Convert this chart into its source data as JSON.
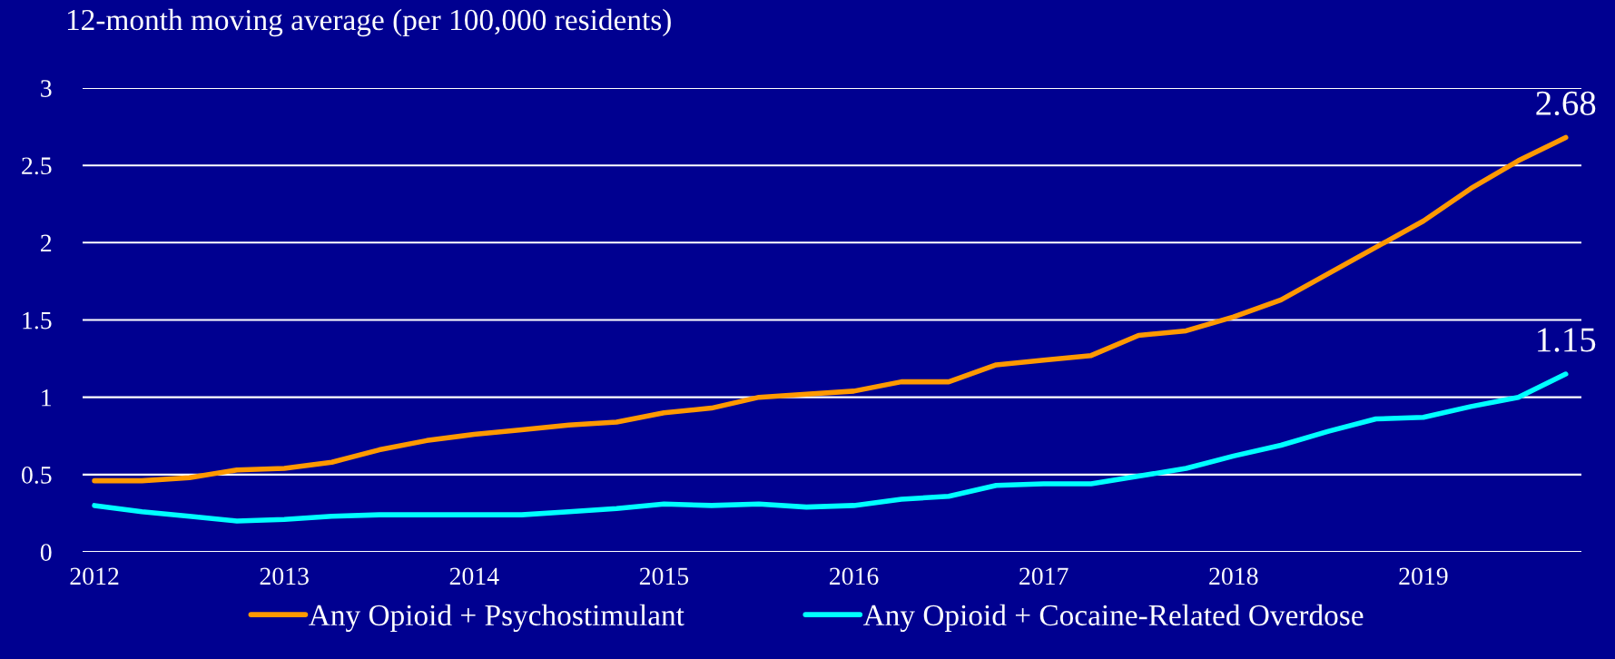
{
  "chart_data": {
    "type": "line",
    "ylabel": "12-month moving average (per 100,000 residents)",
    "categories": [
      "2012",
      null,
      null,
      null,
      "2013",
      null,
      null,
      null,
      "2014",
      null,
      null,
      null,
      "2015",
      null,
      null,
      null,
      "2016",
      null,
      null,
      null,
      "2017",
      null,
      null,
      null,
      "2018",
      null,
      null,
      null,
      "2019",
      null,
      null,
      null
    ],
    "series": [
      {
        "name": "Any Opioid + Psychostimulant",
        "color": "#ff9900",
        "values": [
          0.46,
          0.46,
          0.48,
          0.53,
          0.54,
          0.58,
          0.66,
          0.72,
          0.76,
          0.79,
          0.82,
          0.84,
          0.9,
          0.93,
          1.0,
          1.02,
          1.04,
          1.1,
          1.1,
          1.21,
          1.24,
          1.27,
          1.4,
          1.43,
          1.52,
          1.63,
          1.8,
          1.97,
          2.14,
          2.35,
          2.53,
          2.68
        ],
        "value_labels": [
          null,
          null,
          null,
          null,
          null,
          null,
          null,
          null,
          null,
          null,
          null,
          null,
          null,
          null,
          null,
          null,
          null,
          null,
          null,
          null,
          null,
          null,
          null,
          null,
          null,
          null,
          null,
          null,
          null,
          null,
          null,
          "2.68"
        ]
      },
      {
        "name": "Any Opioid + Cocaine-Related Overdose",
        "color": "#00ffff",
        "values": [
          0.3,
          0.26,
          0.23,
          0.2,
          0.21,
          0.23,
          0.24,
          0.24,
          0.24,
          0.24,
          0.26,
          0.28,
          0.31,
          0.3,
          0.31,
          0.29,
          0.3,
          0.34,
          0.36,
          0.43,
          0.44,
          0.44,
          0.49,
          0.54,
          0.62,
          0.69,
          0.78,
          0.86,
          0.87,
          0.94,
          1.0,
          1.15
        ],
        "value_labels": [
          null,
          null,
          null,
          null,
          null,
          null,
          null,
          null,
          null,
          null,
          null,
          null,
          null,
          null,
          null,
          null,
          null,
          null,
          null,
          null,
          null,
          null,
          null,
          null,
          null,
          null,
          null,
          null,
          null,
          null,
          null,
          "1.15"
        ]
      }
    ],
    "ylim": [
      0,
      3
    ],
    "yticks": [
      0,
      0.5,
      1,
      1.5,
      2,
      2.5,
      3
    ],
    "grid": "y",
    "legend": "bottom",
    "marker": "none",
    "line_style": "solid"
  }
}
